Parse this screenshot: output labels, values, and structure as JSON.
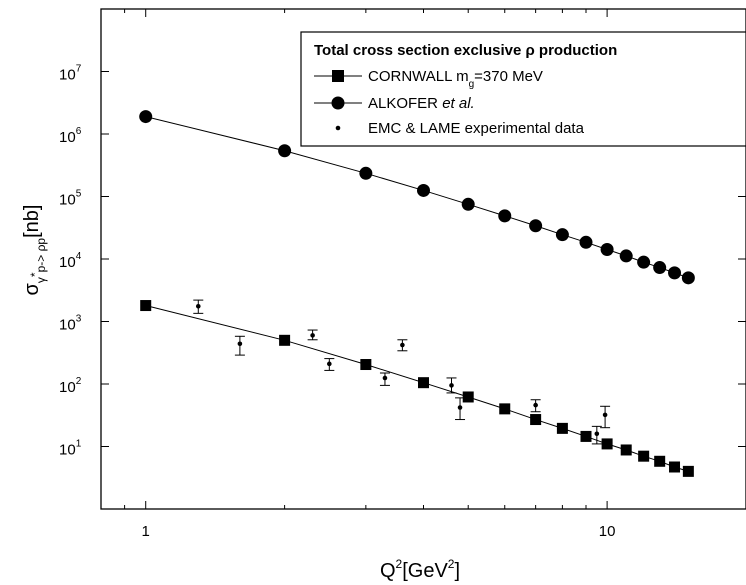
{
  "chart_data": {
    "type": "scatter",
    "xscale": "log",
    "yscale": "log",
    "xlim": [
      0.8,
      20
    ],
    "ylim": [
      1,
      100000000
    ],
    "grid": false,
    "legend_position": "top-right",
    "legend_title": "Total cross section exclusive ρ production",
    "xlabel": {
      "base": "Q",
      "sup": "2",
      "rest": "[GeV",
      "sup2": "2",
      "end": "]"
    },
    "ylabel": {
      "sym": "σ",
      "sub": "γ",
      "subsup": "*",
      "subrest": "p-> ρp",
      "unit": "[nb]"
    },
    "x_ticks": [
      {
        "value": 1,
        "label": "1"
      },
      {
        "value": 10,
        "label": "10"
      }
    ],
    "y_ticks": [
      {
        "value": 10,
        "base": "10",
        "exp": "1"
      },
      {
        "value": 100,
        "base": "10",
        "exp": "2"
      },
      {
        "value": 1000,
        "base": "10",
        "exp": "3"
      },
      {
        "value": 10000,
        "base": "10",
        "exp": "4"
      },
      {
        "value": 100000,
        "base": "10",
        "exp": "5"
      },
      {
        "value": 1000000,
        "base": "10",
        "exp": "6"
      },
      {
        "value": 10000000,
        "base": "10",
        "exp": "7"
      }
    ],
    "series": [
      {
        "name": "CORNWALL m",
        "name_sub": "g",
        "name_rest": "=370 MeV",
        "marker": "square",
        "line": true,
        "x": [
          1,
          2,
          3,
          4,
          5,
          6,
          7,
          8,
          9,
          10,
          11,
          12,
          13,
          14,
          15
        ],
        "y": [
          1800,
          500,
          205,
          105,
          62,
          40,
          27,
          19.5,
          14.5,
          11,
          8.8,
          7,
          5.8,
          4.7,
          4
        ]
      },
      {
        "name": "ALKOFER ",
        "name_italic": "et al.",
        "marker": "circle",
        "line": true,
        "x": [
          1,
          2,
          3,
          4,
          5,
          6,
          7,
          8,
          9,
          10,
          11,
          12,
          13,
          14,
          15
        ],
        "y": [
          1900000,
          540000,
          235000,
          125000,
          75000,
          49000,
          34000,
          24500,
          18500,
          14200,
          11200,
          8900,
          7300,
          6000,
          5000
        ]
      },
      {
        "name": "EMC & LAME experimental data",
        "marker": "dot",
        "line": false,
        "x": [
          1.3,
          1.6,
          2.3,
          2.5,
          3.3,
          3.6,
          4.6,
          4.8,
          7.0,
          9.5,
          9.9
        ],
        "y": [
          1750,
          440,
          600,
          210,
          125,
          420,
          95,
          42,
          46,
          16,
          32
        ],
        "y_low": [
          1350,
          290,
          510,
          165,
          95,
          340,
          72,
          27,
          36,
          11,
          20
        ],
        "y_high": [
          2200,
          580,
          730,
          255,
          150,
          510,
          125,
          60,
          56,
          21,
          44
        ]
      }
    ]
  }
}
